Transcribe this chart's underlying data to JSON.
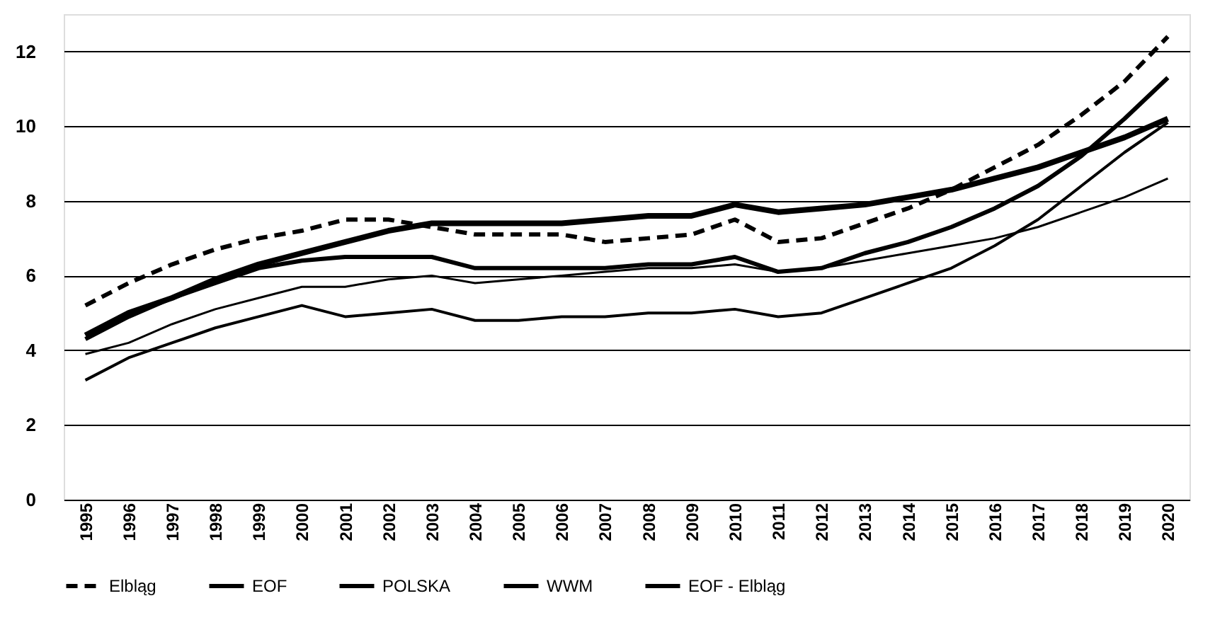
{
  "chart_data": {
    "type": "line",
    "categories": [
      "1995",
      "1996",
      "1997",
      "1998",
      "1999",
      "2000",
      "2001",
      "2002",
      "2003",
      "2004",
      "2005",
      "2006",
      "2007",
      "2008",
      "2009",
      "2010",
      "2011",
      "2012",
      "2013",
      "2014",
      "2015",
      "2016",
      "2017",
      "2018",
      "2019",
      "2020"
    ],
    "series": [
      {
        "name": "Elbląg",
        "color": "#000000",
        "line_style": "dashed",
        "values": [
          5.2,
          5.8,
          6.3,
          6.7,
          7.0,
          7.2,
          7.5,
          7.5,
          7.3,
          7.1,
          7.1,
          7.1,
          6.9,
          7.0,
          7.1,
          7.5,
          6.9,
          7.0,
          7.4,
          7.8,
          8.3,
          8.9,
          9.5,
          10.3,
          11.2,
          12.4
        ]
      },
      {
        "name": "EOF",
        "color": "#000000",
        "line_style": "solid",
        "values": [
          4.4,
          5.0,
          5.4,
          5.9,
          6.3,
          6.6,
          6.9,
          7.2,
          7.4,
          7.4,
          7.4,
          7.4,
          7.5,
          7.6,
          7.6,
          7.9,
          7.7,
          7.8,
          7.9,
          8.1,
          8.3,
          8.6,
          8.9,
          9.3,
          9.7,
          10.2
        ]
      },
      {
        "name": "POLSKA",
        "color": "#000000",
        "line_style": "solid",
        "values": [
          4.3,
          4.9,
          5.4,
          5.8,
          6.2,
          6.4,
          6.5,
          6.5,
          6.5,
          6.2,
          6.2,
          6.2,
          6.2,
          6.3,
          6.3,
          6.5,
          6.1,
          6.2,
          6.6,
          6.9,
          7.3,
          7.8,
          8.4,
          9.2,
          10.2,
          11.3
        ]
      },
      {
        "name": "WWM",
        "color": "#000000",
        "line_style": "solid",
        "values": [
          3.9,
          4.2,
          4.7,
          5.1,
          5.4,
          5.7,
          5.7,
          5.9,
          6.0,
          5.8,
          5.9,
          6.0,
          6.1,
          6.2,
          6.2,
          6.3,
          6.1,
          6.2,
          6.4,
          6.6,
          6.8,
          7.0,
          7.3,
          7.7,
          8.1,
          8.6
        ]
      },
      {
        "name": "EOF - Elbląg",
        "color": "#000000",
        "line_style": "solid",
        "values": [
          3.2,
          3.8,
          4.2,
          4.6,
          4.9,
          5.2,
          4.9,
          5.0,
          5.1,
          4.8,
          4.8,
          4.9,
          4.9,
          5.0,
          5.0,
          5.1,
          4.9,
          5.0,
          5.4,
          5.8,
          6.2,
          6.8,
          7.5,
          8.4,
          9.3,
          10.1
        ]
      }
    ],
    "ylim": [
      0,
      13
    ],
    "yticks": [
      0,
      2,
      4,
      6,
      8,
      10,
      12
    ],
    "grid": "y",
    "legend": "bottom"
  }
}
